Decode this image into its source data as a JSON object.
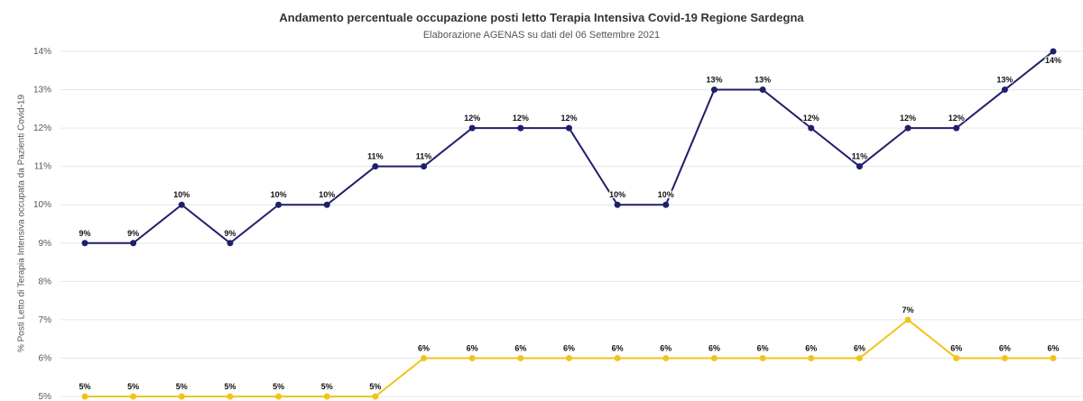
{
  "chart_data": {
    "type": "line",
    "title": "Andamento percentuale occupazione posti letto Terapia Intensiva Covid-19 Regione Sardegna",
    "subtitle": "Elaborazione AGENAS su dati del 06 Settembre 2021",
    "xlabel": "",
    "ylabel": "% Posti Letto di Terapia Intensiva occupata da Pazienti Covid-19",
    "ylim": [
      5,
      14
    ],
    "y_ticks": [
      "5%",
      "6%",
      "7%",
      "8%",
      "9%",
      "10%",
      "11%",
      "12%",
      "13%",
      "14%"
    ],
    "grid": true,
    "series": [
      {
        "color": "#1f1f6b",
        "values": [
          9,
          9,
          10,
          9,
          10,
          10,
          11,
          11,
          12,
          12,
          12,
          10,
          10,
          13,
          13,
          12,
          11,
          12,
          12,
          13,
          14
        ],
        "labels": [
          "9%",
          "9%",
          "10%",
          "9%",
          "10%",
          "10%",
          "11%",
          "11%",
          "12%",
          "12%",
          "12%",
          "10%",
          "10%",
          "13%",
          "13%",
          "12%",
          "11%",
          "12%",
          "12%",
          "13%",
          "14%"
        ]
      },
      {
        "color": "#f0c419",
        "values": [
          5,
          5,
          5,
          5,
          5,
          5,
          5,
          6,
          6,
          6,
          6,
          6,
          6,
          6,
          6,
          6,
          6,
          7,
          6,
          6,
          6
        ],
        "labels": [
          "5%",
          "5%",
          "5%",
          "5%",
          "5%",
          "5%",
          "5%",
          "6%",
          "6%",
          "6%",
          "6%",
          "6%",
          "6%",
          "6%",
          "6%",
          "6%",
          "6%",
          "7%",
          "6%",
          "6%",
          "6%"
        ]
      }
    ]
  }
}
